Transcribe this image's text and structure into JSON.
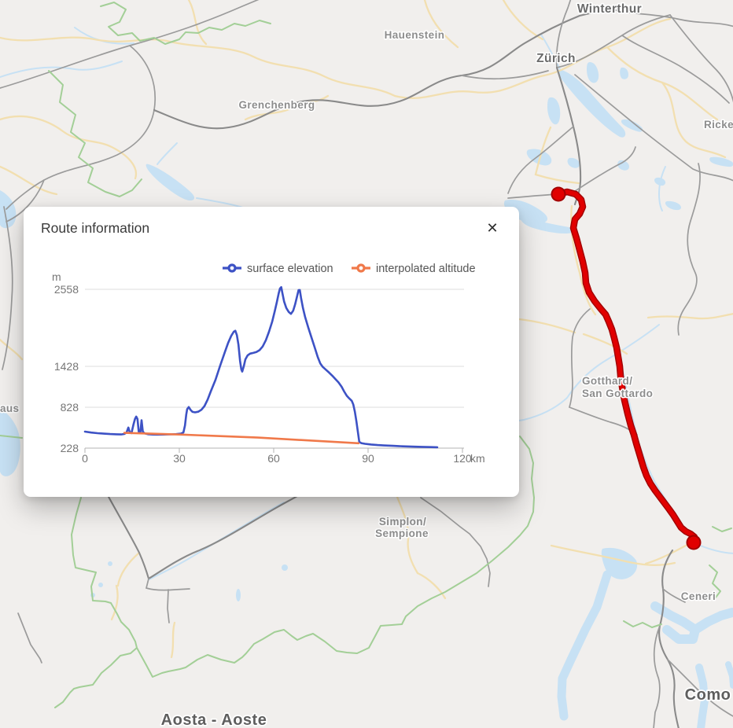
{
  "panel": {
    "title": "Route information",
    "close_label": "✕"
  },
  "chart_data": {
    "type": "line",
    "title": "",
    "xlabel": "km",
    "ylabel": "m",
    "xlim": [
      0,
      120
    ],
    "ylim": [
      228,
      2558
    ],
    "x_ticks": [
      0,
      30,
      60,
      90,
      120
    ],
    "y_ticks": [
      228,
      828,
      1428,
      2558
    ],
    "grid": true,
    "legend_position": "top-right",
    "series": [
      {
        "name": "surface elevation",
        "color": "#3d52c5",
        "points": [
          [
            0,
            470
          ],
          [
            2,
            456
          ],
          [
            4,
            447
          ],
          [
            6,
            440
          ],
          [
            8,
            435
          ],
          [
            10,
            431
          ],
          [
            11.5,
            429
          ],
          [
            12.5,
            436
          ],
          [
            13.2,
            455
          ],
          [
            13.8,
            530
          ],
          [
            14.2,
            468
          ],
          [
            14.8,
            448
          ],
          [
            15.4,
            570
          ],
          [
            15.9,
            655
          ],
          [
            16.3,
            690
          ],
          [
            16.7,
            655
          ],
          [
            17.1,
            470
          ],
          [
            17.6,
            448
          ],
          [
            18,
            638
          ],
          [
            18.4,
            468
          ],
          [
            19,
            444
          ],
          [
            20,
            432
          ],
          [
            21.5,
            427
          ],
          [
            23,
            426
          ],
          [
            25,
            428
          ],
          [
            27,
            430
          ],
          [
            29,
            433
          ],
          [
            30.5,
            440
          ],
          [
            31.3,
            458
          ],
          [
            31.8,
            560
          ],
          [
            32.2,
            720
          ],
          [
            32.5,
            800
          ],
          [
            33,
            830
          ],
          [
            33.6,
            788
          ],
          [
            34.2,
            760
          ],
          [
            35,
            753
          ],
          [
            36,
            762
          ],
          [
            37,
            790
          ],
          [
            38,
            845
          ],
          [
            39,
            940
          ],
          [
            40,
            1060
          ],
          [
            41.5,
            1230
          ],
          [
            43,
            1440
          ],
          [
            44.5,
            1640
          ],
          [
            45.5,
            1770
          ],
          [
            46.5,
            1875
          ],
          [
            47.3,
            1935
          ],
          [
            47.8,
            1950
          ],
          [
            48.3,
            1885
          ],
          [
            48.8,
            1745
          ],
          [
            49.3,
            1510
          ],
          [
            49.7,
            1385
          ],
          [
            50,
            1352
          ],
          [
            50.5,
            1430
          ],
          [
            51,
            1530
          ],
          [
            51.7,
            1588
          ],
          [
            52.5,
            1615
          ],
          [
            53.5,
            1625
          ],
          [
            54.5,
            1638
          ],
          [
            55.5,
            1665
          ],
          [
            56.5,
            1720
          ],
          [
            57.5,
            1810
          ],
          [
            58.5,
            1935
          ],
          [
            59.5,
            2080
          ],
          [
            60.3,
            2230
          ],
          [
            61,
            2370
          ],
          [
            61.6,
            2500
          ],
          [
            62,
            2570
          ],
          [
            62.4,
            2590
          ],
          [
            62.8,
            2495
          ],
          [
            63.3,
            2380
          ],
          [
            64,
            2285
          ],
          [
            64.8,
            2225
          ],
          [
            65.5,
            2198
          ],
          [
            66.2,
            2245
          ],
          [
            66.8,
            2335
          ],
          [
            67.4,
            2450
          ],
          [
            67.9,
            2545
          ],
          [
            68.3,
            2548
          ],
          [
            68.7,
            2430
          ],
          [
            69.3,
            2285
          ],
          [
            70,
            2150
          ],
          [
            71,
            1995
          ],
          [
            72,
            1852
          ],
          [
            73,
            1710
          ],
          [
            74,
            1565
          ],
          [
            74.8,
            1472
          ],
          [
            75.6,
            1420
          ],
          [
            76.6,
            1378
          ],
          [
            77.6,
            1337
          ],
          [
            78.6,
            1292
          ],
          [
            79.6,
            1242
          ],
          [
            80.6,
            1192
          ],
          [
            81.6,
            1128
          ],
          [
            82.4,
            1058
          ],
          [
            83.2,
            998
          ],
          [
            84,
            958
          ],
          [
            84.8,
            922
          ],
          [
            85.3,
            868
          ],
          [
            85.8,
            762
          ],
          [
            86.3,
            618
          ],
          [
            86.8,
            452
          ],
          [
            87.2,
            322
          ],
          [
            87.8,
            302
          ],
          [
            89,
            291
          ],
          [
            91,
            281
          ],
          [
            93,
            273
          ],
          [
            95,
            267
          ],
          [
            98,
            261
          ],
          [
            101,
            255
          ],
          [
            104,
            250
          ],
          [
            107,
            246
          ],
          [
            110,
            243
          ],
          [
            112,
            241
          ]
        ]
      },
      {
        "name": "interpolated altitude",
        "color": "#f0794a",
        "points": [
          [
            12.5,
            452
          ],
          [
            30,
            428
          ],
          [
            55,
            382
          ],
          [
            87,
            300
          ]
        ]
      }
    ]
  },
  "map": {
    "route_color": "#e10000",
    "route_casing_color": "#a30000",
    "labels": [
      {
        "text": "Winterthur"
      },
      {
        "text": "Hauenstein"
      },
      {
        "text": "Zürich"
      },
      {
        "text": "Ricke"
      },
      {
        "text": "Grenchenberg"
      },
      {
        "text": "aus"
      },
      {
        "text": "Gotthard/"
      },
      {
        "text": "San Gottardo"
      },
      {
        "text": "Simplon/"
      },
      {
        "text": "Sempione"
      },
      {
        "text": "Ceneri"
      },
      {
        "text": "Como"
      },
      {
        "text": "Aosta - Aoste"
      }
    ]
  }
}
